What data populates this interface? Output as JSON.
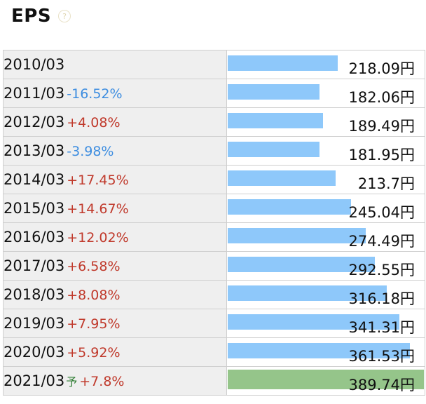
{
  "title": "EPS",
  "help_icon": "question-circle-icon",
  "colors": {
    "bar": "#8ec8fa",
    "forecast_bar": "#95c58a",
    "up": "#c0392b",
    "down": "#3d8de0",
    "forecast_mark": "#2e7d32"
  },
  "chart_data": {
    "type": "bar",
    "orientation": "horizontal",
    "title": "EPS",
    "unit": "円",
    "xlim": [
      0,
      389.74
    ],
    "rows": [
      {
        "year": "2010/03",
        "change": "",
        "value": 218.09,
        "value_label": "218.09円",
        "forecast": false
      },
      {
        "year": "2011/03",
        "change": "-16.52%",
        "value": 182.06,
        "value_label": "182.06円",
        "forecast": false
      },
      {
        "year": "2012/03",
        "change": "+4.08%",
        "value": 189.49,
        "value_label": "189.49円",
        "forecast": false
      },
      {
        "year": "2013/03",
        "change": "-3.98%",
        "value": 181.95,
        "value_label": "181.95円",
        "forecast": false
      },
      {
        "year": "2014/03",
        "change": "+17.45%",
        "value": 213.7,
        "value_label": "213.7円",
        "forecast": false
      },
      {
        "year": "2015/03",
        "change": "+14.67%",
        "value": 245.04,
        "value_label": "245.04円",
        "forecast": false
      },
      {
        "year": "2016/03",
        "change": "+12.02%",
        "value": 274.49,
        "value_label": "274.49円",
        "forecast": false
      },
      {
        "year": "2017/03",
        "change": "+6.58%",
        "value": 292.55,
        "value_label": "292.55円",
        "forecast": false
      },
      {
        "year": "2018/03",
        "change": "+8.08%",
        "value": 316.18,
        "value_label": "316.18円",
        "forecast": false
      },
      {
        "year": "2019/03",
        "change": "+7.95%",
        "value": 341.31,
        "value_label": "341.31円",
        "forecast": false
      },
      {
        "year": "2020/03",
        "change": "+5.92%",
        "value": 361.53,
        "value_label": "361.53円",
        "forecast": false
      },
      {
        "year": "2021/03",
        "change": "+7.8%",
        "value": 389.74,
        "value_label": "389.74円",
        "forecast": true,
        "forecast_mark": "予"
      }
    ]
  }
}
